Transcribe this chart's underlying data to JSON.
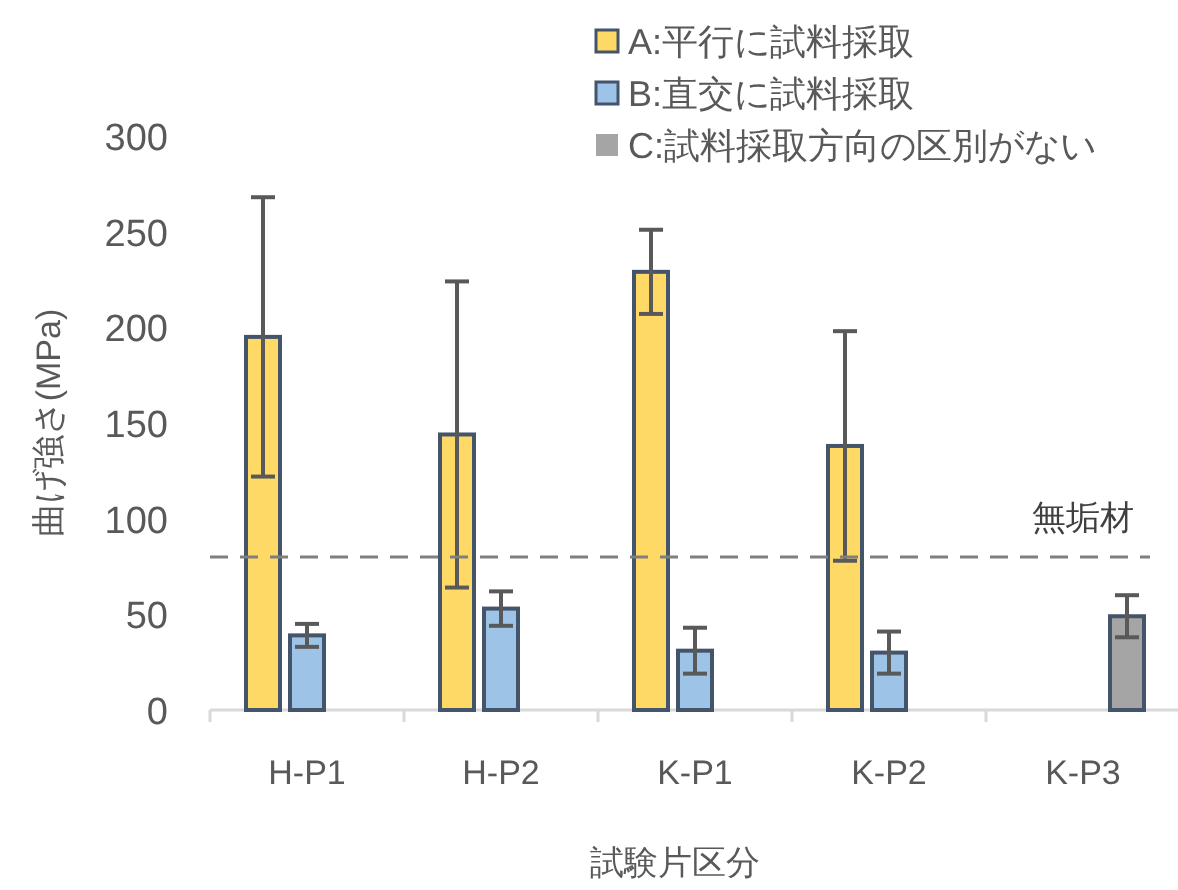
{
  "chart_data": {
    "type": "bar",
    "xlabel": "試験片区分",
    "ylabel": "曲げ強さ(MPa)",
    "categories": [
      "H-P1",
      "H-P2",
      "K-P1",
      "K-P2",
      "K-P3"
    ],
    "series": [
      {
        "name": "A:平行に試料採取",
        "color": "#ffd966",
        "values": [
          195,
          144,
          229,
          138,
          null
        ],
        "errors": [
          73,
          80,
          22,
          60,
          null
        ]
      },
      {
        "name": "B:直交に試料採取",
        "color": "#9dc3e6",
        "values": [
          39,
          53,
          31,
          30,
          null
        ],
        "errors": [
          6,
          9,
          12,
          11,
          null
        ]
      },
      {
        "name": "C:試料採取方向の区別がない",
        "color": "#a5a5a5",
        "values": [
          null,
          null,
          null,
          null,
          49
        ],
        "errors": [
          null,
          null,
          null,
          null,
          11
        ]
      }
    ],
    "ylim": [
      0,
      300
    ],
    "yticks": [
      0,
      50,
      100,
      150,
      200,
      250,
      300
    ],
    "ref_lines": [
      {
        "axis": "y",
        "value": 80,
        "label": "無垢材",
        "color": "#7f7f7f",
        "line_style": "dashed"
      }
    ],
    "grid": false,
    "legend": "top right"
  }
}
